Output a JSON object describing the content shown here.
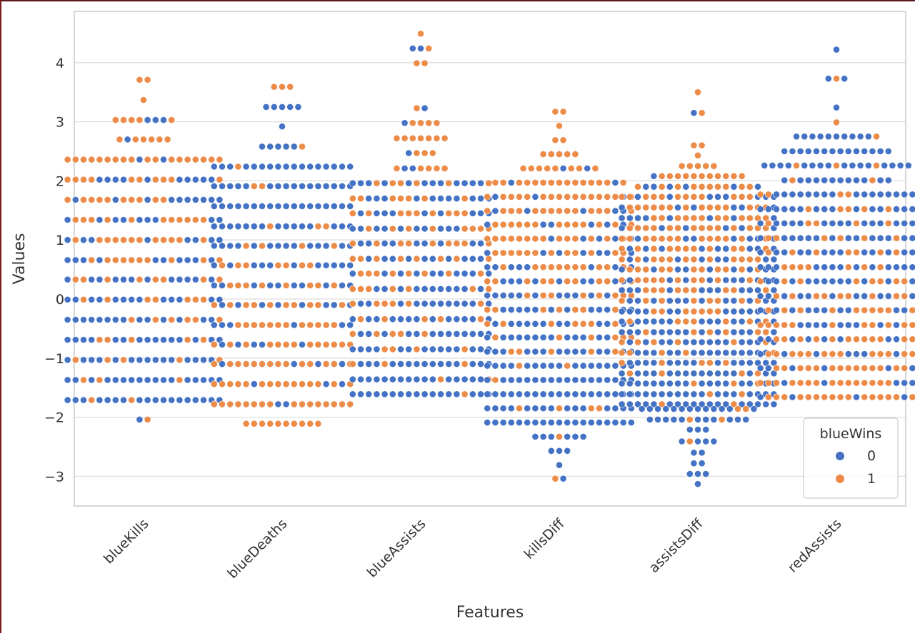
{
  "chart_data": {
    "type": "scatter",
    "subtype": "swarm",
    "xlabel": "Features",
    "ylabel": "Values",
    "categories": [
      "blueKills",
      "blueDeaths",
      "blueAssists",
      "killsDiff",
      "assistsDiff",
      "redAssists"
    ],
    "ylim": [
      -3.5,
      4.85
    ],
    "yticks": [
      -3,
      -2,
      -1,
      0,
      1,
      2,
      3,
      4
    ],
    "ytick_labels": [
      "−3",
      "−2",
      "−1",
      "0",
      "1",
      "2",
      "3",
      "4"
    ],
    "grid": true,
    "legend": {
      "title": "blueWins",
      "position": "bottom-right",
      "entries": [
        "0",
        "1"
      ]
    },
    "colors": {
      "0": "#4472c4",
      "1": "#ed8b48"
    },
    "series": [
      {
        "category": "blueKills",
        "rows": [
          {
            "y": 3.71,
            "n0": 0,
            "n1": 2
          },
          {
            "y": 3.37,
            "n0": 0,
            "n1": 1
          },
          {
            "y": 3.03,
            "n0": 3,
            "n1": 5
          },
          {
            "y": 2.7,
            "n0": 1,
            "n1": 6
          },
          {
            "y": 2.36,
            "n0": 2,
            "n1": 18
          },
          {
            "y": 2.02,
            "n0": 10,
            "n1": 10
          },
          {
            "y": 1.68,
            "n0": 10,
            "n1": 10
          },
          {
            "y": 1.34,
            "n0": 9,
            "n1": 11
          },
          {
            "y": 1.0,
            "n0": 8,
            "n1": 12
          },
          {
            "y": 0.66,
            "n0": 10,
            "n1": 10
          },
          {
            "y": 0.33,
            "n0": 12,
            "n1": 8
          },
          {
            "y": -0.01,
            "n0": 13,
            "n1": 7
          },
          {
            "y": -0.35,
            "n0": 14,
            "n1": 6
          },
          {
            "y": -0.69,
            "n0": 15,
            "n1": 5
          },
          {
            "y": -1.03,
            "n0": 15,
            "n1": 5
          },
          {
            "y": -1.37,
            "n0": 17,
            "n1": 3
          },
          {
            "y": -1.71,
            "n0": 18,
            "n1": 2
          },
          {
            "y": -2.04,
            "n0": 1,
            "n1": 1
          }
        ]
      },
      {
        "category": "blueDeaths",
        "rows": [
          {
            "y": 3.59,
            "n0": 0,
            "n1": 3
          },
          {
            "y": 3.25,
            "n0": 5,
            "n1": 0
          },
          {
            "y": 2.92,
            "n0": 1,
            "n1": 0
          },
          {
            "y": 2.58,
            "n0": 5,
            "n1": 1
          },
          {
            "y": 2.24,
            "n0": 17,
            "n1": 1
          },
          {
            "y": 1.91,
            "n0": 16,
            "n1": 2
          },
          {
            "y": 1.57,
            "n0": 18,
            "n1": 0
          },
          {
            "y": 1.23,
            "n0": 15,
            "n1": 3
          },
          {
            "y": 0.9,
            "n0": 14,
            "n1": 4
          },
          {
            "y": 0.57,
            "n0": 11,
            "n1": 7
          },
          {
            "y": 0.23,
            "n0": 10,
            "n1": 8
          },
          {
            "y": -0.1,
            "n0": 8,
            "n1": 10
          },
          {
            "y": -0.44,
            "n0": 6,
            "n1": 12
          },
          {
            "y": -0.77,
            "n0": 5,
            "n1": 13
          },
          {
            "y": -1.1,
            "n0": 4,
            "n1": 14
          },
          {
            "y": -1.44,
            "n0": 3,
            "n1": 15
          },
          {
            "y": -1.78,
            "n0": 2,
            "n1": 16
          },
          {
            "y": -2.11,
            "n0": 0,
            "n1": 10
          }
        ]
      },
      {
        "category": "blueAssists",
        "rows": [
          {
            "y": 4.49,
            "n0": 0,
            "n1": 1
          },
          {
            "y": 4.24,
            "n0": 2,
            "n1": 1
          },
          {
            "y": 3.99,
            "n0": 0,
            "n1": 2
          },
          {
            "y": 3.23,
            "n0": 1,
            "n1": 1
          },
          {
            "y": 2.98,
            "n0": 1,
            "n1": 4
          },
          {
            "y": 2.72,
            "n0": 0,
            "n1": 7
          },
          {
            "y": 2.47,
            "n0": 1,
            "n1": 3
          },
          {
            "y": 2.21,
            "n0": 2,
            "n1": 5
          },
          {
            "y": 1.96,
            "n0": 12,
            "n1": 6
          },
          {
            "y": 1.7,
            "n0": 11,
            "n1": 7
          },
          {
            "y": 1.45,
            "n0": 9,
            "n1": 9
          },
          {
            "y": 1.19,
            "n0": 10,
            "n1": 8
          },
          {
            "y": 0.94,
            "n0": 9,
            "n1": 9
          },
          {
            "y": 0.68,
            "n0": 10,
            "n1": 8
          },
          {
            "y": 0.43,
            "n0": 10,
            "n1": 8
          },
          {
            "y": 0.17,
            "n0": 11,
            "n1": 7
          },
          {
            "y": -0.08,
            "n0": 12,
            "n1": 6
          },
          {
            "y": -0.34,
            "n0": 13,
            "n1": 5
          },
          {
            "y": -0.59,
            "n0": 13,
            "n1": 5
          },
          {
            "y": -0.85,
            "n0": 14,
            "n1": 4
          },
          {
            "y": -1.1,
            "n0": 15,
            "n1": 3
          },
          {
            "y": -1.36,
            "n0": 16,
            "n1": 2
          },
          {
            "y": -1.61,
            "n0": 17,
            "n1": 1
          }
        ]
      },
      {
        "category": "killsDiff",
        "rows": [
          {
            "y": 3.17,
            "n0": 0,
            "n1": 2
          },
          {
            "y": 2.93,
            "n0": 0,
            "n1": 1
          },
          {
            "y": 2.69,
            "n0": 0,
            "n1": 2
          },
          {
            "y": 2.45,
            "n0": 0,
            "n1": 5
          },
          {
            "y": 2.21,
            "n0": 2,
            "n1": 8
          },
          {
            "y": 1.97,
            "n0": 2,
            "n1": 15
          },
          {
            "y": 1.73,
            "n0": 3,
            "n1": 16
          },
          {
            "y": 1.49,
            "n0": 5,
            "n1": 14
          },
          {
            "y": 1.26,
            "n0": 6,
            "n1": 13
          },
          {
            "y": 1.02,
            "n0": 5,
            "n1": 14
          },
          {
            "y": 0.78,
            "n0": 7,
            "n1": 12
          },
          {
            "y": 0.54,
            "n0": 8,
            "n1": 11
          },
          {
            "y": 0.3,
            "n0": 9,
            "n1": 10
          },
          {
            "y": 0.06,
            "n0": 11,
            "n1": 8
          },
          {
            "y": -0.18,
            "n0": 12,
            "n1": 7
          },
          {
            "y": -0.42,
            "n0": 12,
            "n1": 7
          },
          {
            "y": -0.65,
            "n0": 13,
            "n1": 6
          },
          {
            "y": -0.89,
            "n0": 14,
            "n1": 5
          },
          {
            "y": -1.13,
            "n0": 17,
            "n1": 2
          },
          {
            "y": -1.37,
            "n0": 18,
            "n1": 1
          },
          {
            "y": -1.61,
            "n0": 19,
            "n1": 0
          },
          {
            "y": -1.85,
            "n0": 15,
            "n1": 4
          },
          {
            "y": -2.09,
            "n0": 19,
            "n1": 0
          },
          {
            "y": -2.33,
            "n0": 6,
            "n1": 1
          },
          {
            "y": -2.57,
            "n0": 3,
            "n1": 0
          },
          {
            "y": -2.81,
            "n0": 1,
            "n1": 0
          },
          {
            "y": -3.04,
            "n0": 1,
            "n1": 1
          }
        ]
      },
      {
        "category": "assistsDiff",
        "rows": [
          {
            "y": 3.5,
            "n0": 0,
            "n1": 1
          },
          {
            "y": 3.15,
            "n0": 1,
            "n1": 1
          },
          {
            "y": 2.6,
            "n0": 0,
            "n1": 2
          },
          {
            "y": 2.43,
            "n0": 0,
            "n1": 1
          },
          {
            "y": 2.25,
            "n0": 0,
            "n1": 5
          },
          {
            "y": 2.08,
            "n0": 1,
            "n1": 11
          },
          {
            "y": 1.9,
            "n0": 6,
            "n1": 10
          },
          {
            "y": 1.73,
            "n0": 8,
            "n1": 12
          },
          {
            "y": 1.55,
            "n0": 6,
            "n1": 14
          },
          {
            "y": 1.37,
            "n0": 8,
            "n1": 12
          },
          {
            "y": 1.2,
            "n0": 6,
            "n1": 14
          },
          {
            "y": 1.02,
            "n0": 7,
            "n1": 13
          },
          {
            "y": 0.85,
            "n0": 9,
            "n1": 11
          },
          {
            "y": 0.67,
            "n0": 8,
            "n1": 12
          },
          {
            "y": 0.5,
            "n0": 9,
            "n1": 11
          },
          {
            "y": 0.32,
            "n0": 10,
            "n1": 10
          },
          {
            "y": 0.15,
            "n0": 11,
            "n1": 9
          },
          {
            "y": -0.03,
            "n0": 12,
            "n1": 8
          },
          {
            "y": -0.21,
            "n0": 13,
            "n1": 7
          },
          {
            "y": -0.38,
            "n0": 13,
            "n1": 7
          },
          {
            "y": -0.56,
            "n0": 14,
            "n1": 6
          },
          {
            "y": -0.73,
            "n0": 14,
            "n1": 6
          },
          {
            "y": -0.91,
            "n0": 15,
            "n1": 5
          },
          {
            "y": -1.08,
            "n0": 15,
            "n1": 5
          },
          {
            "y": -1.26,
            "n0": 16,
            "n1": 4
          },
          {
            "y": -1.43,
            "n0": 17,
            "n1": 3
          },
          {
            "y": -1.61,
            "n0": 18,
            "n1": 2
          },
          {
            "y": -1.78,
            "n0": 18,
            "n1": 2
          },
          {
            "y": -1.86,
            "n0": 13,
            "n1": 2
          },
          {
            "y": -2.04,
            "n0": 11,
            "n1": 2
          },
          {
            "y": -2.21,
            "n0": 3,
            "n1": 0
          },
          {
            "y": -2.41,
            "n0": 4,
            "n1": 1
          },
          {
            "y": -2.6,
            "n0": 2,
            "n1": 0
          },
          {
            "y": -2.78,
            "n0": 2,
            "n1": 0
          },
          {
            "y": -2.96,
            "n0": 3,
            "n1": 0
          },
          {
            "y": -3.13,
            "n0": 1,
            "n1": 0
          }
        ]
      },
      {
        "category": "redAssists",
        "rows": [
          {
            "y": 4.22,
            "n0": 1,
            "n1": 0
          },
          {
            "y": 3.73,
            "n0": 2,
            "n1": 1
          },
          {
            "y": 3.24,
            "n0": 1,
            "n1": 0
          },
          {
            "y": 2.99,
            "n0": 0,
            "n1": 1
          },
          {
            "y": 2.75,
            "n0": 10,
            "n1": 1
          },
          {
            "y": 2.5,
            "n0": 14,
            "n1": 0
          },
          {
            "y": 2.26,
            "n0": 16,
            "n1": 3
          },
          {
            "y": 2.01,
            "n0": 12,
            "n1": 2
          },
          {
            "y": 1.77,
            "n0": 16,
            "n1": 4
          },
          {
            "y": 1.52,
            "n0": 15,
            "n1": 5
          },
          {
            "y": 1.28,
            "n0": 15,
            "n1": 5
          },
          {
            "y": 1.03,
            "n0": 14,
            "n1": 6
          },
          {
            "y": 0.79,
            "n0": 13,
            "n1": 7
          },
          {
            "y": 0.54,
            "n0": 13,
            "n1": 7
          },
          {
            "y": 0.3,
            "n0": 12,
            "n1": 8
          },
          {
            "y": 0.05,
            "n0": 11,
            "n1": 9
          },
          {
            "y": -0.19,
            "n0": 10,
            "n1": 10
          },
          {
            "y": -0.44,
            "n0": 9,
            "n1": 11
          },
          {
            "y": -0.68,
            "n0": 8,
            "n1": 12
          },
          {
            "y": -0.93,
            "n0": 7,
            "n1": 13
          },
          {
            "y": -1.17,
            "n0": 6,
            "n1": 14
          },
          {
            "y": -1.42,
            "n0": 5,
            "n1": 15
          },
          {
            "y": -1.66,
            "n0": 4,
            "n1": 16
          }
        ]
      }
    ]
  }
}
